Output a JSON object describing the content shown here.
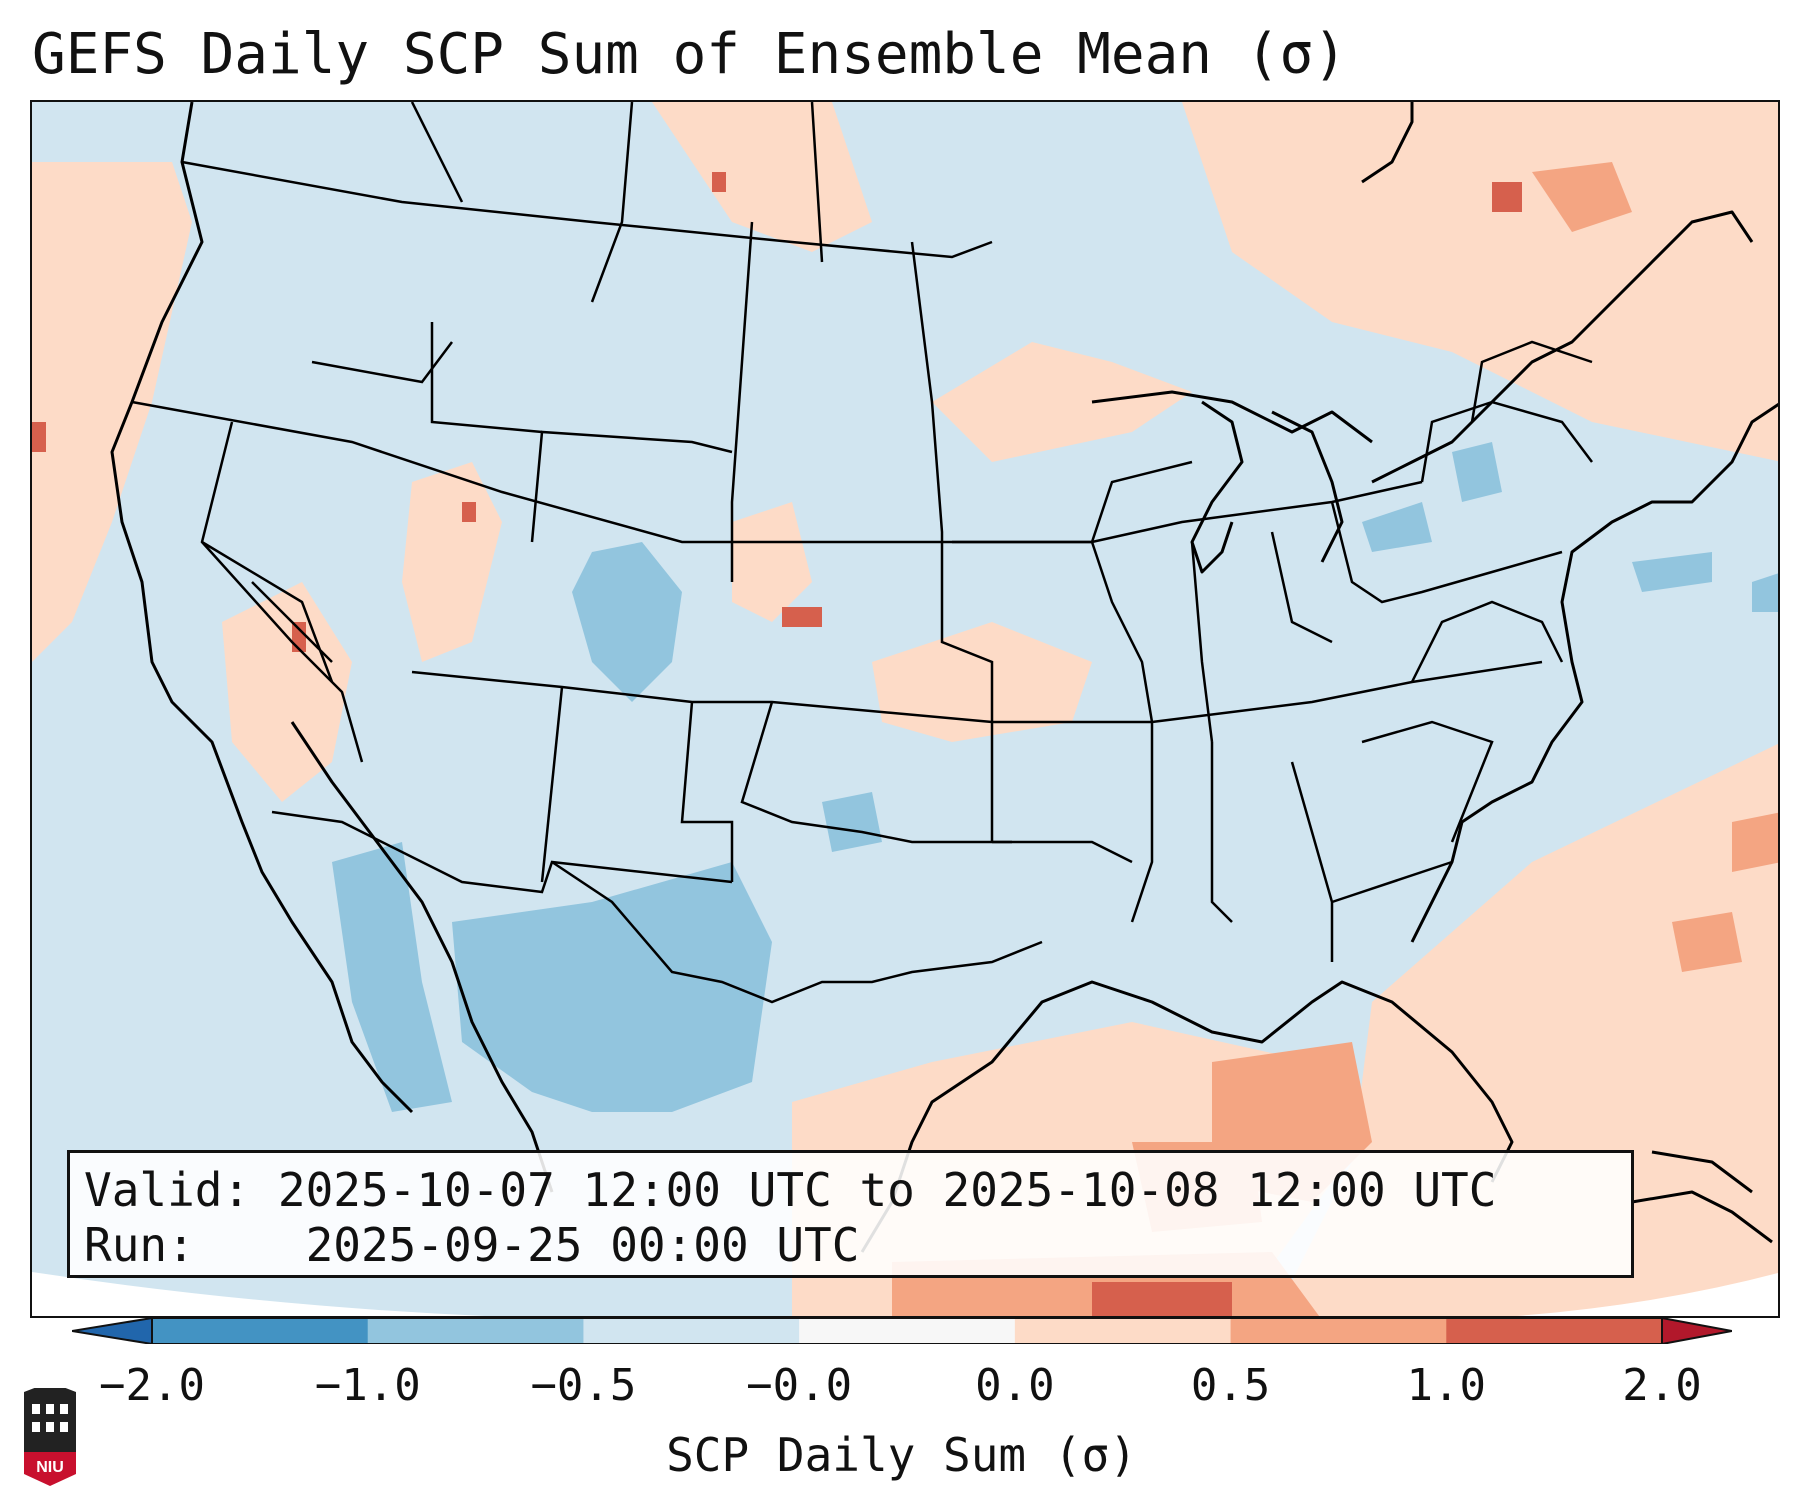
{
  "title": "GEFS Daily SCP Sum of Ensemble Mean (σ)",
  "info": {
    "valid_label": "Valid:",
    "valid_value": "2025-10-07 12:00 UTC to 2025-10-08 12:00 UTC",
    "run_label": "Run:",
    "run_value": "2025-09-25 00:00 UTC"
  },
  "colorbar": {
    "label": "SCP Daily Sum (σ)",
    "ticks": [
      "−2.0",
      "−1.0",
      "−0.5",
      "−0.0",
      "0.0",
      "0.5",
      "1.0",
      "2.0"
    ],
    "colors": [
      "#4393c3",
      "#92c5de",
      "#d1e5f0",
      "#f7f7f7",
      "#fddbc7",
      "#f4a582",
      "#d6604d"
    ],
    "under_color": "#2166ac",
    "over_color": "#b2182b"
  },
  "logo": {
    "text": "NIU"
  }
}
